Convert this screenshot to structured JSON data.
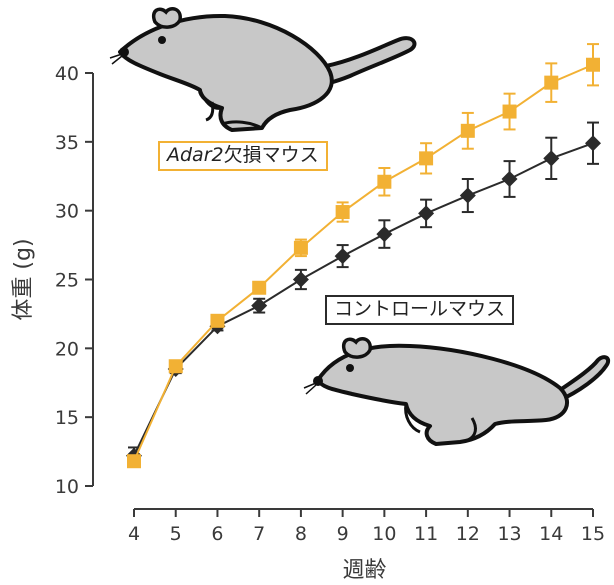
{
  "chart_data": {
    "type": "line",
    "xlabel": "週齢",
    "ylabel": "体重 (g)",
    "x": [
      4,
      5,
      6,
      7,
      8,
      9,
      10,
      11,
      12,
      13,
      14,
      15
    ],
    "xlim": [
      4,
      15
    ],
    "ylim": [
      10,
      40
    ],
    "yticks": [
      10,
      15,
      20,
      25,
      30,
      35,
      40
    ],
    "grid": false,
    "series": [
      {
        "name_italic": "Adar2",
        "name_rest": "欠損マウス",
        "color": "#f2b134",
        "marker": "square",
        "values": [
          11.8,
          18.7,
          22.0,
          24.4,
          27.3,
          29.9,
          32.1,
          33.8,
          35.8,
          37.2,
          39.3,
          40.6
        ],
        "errors": [
          0.4,
          0.4,
          0.3,
          0.4,
          0.6,
          0.7,
          1.0,
          1.1,
          1.3,
          1.3,
          1.4,
          1.5
        ]
      },
      {
        "name": "コントロールマウス",
        "color": "#2b2b2b",
        "marker": "diamond",
        "values": [
          12.2,
          18.5,
          21.6,
          23.1,
          25.0,
          26.7,
          28.3,
          29.8,
          31.1,
          32.3,
          33.8,
          34.9
        ],
        "errors": [
          0.6,
          0.3,
          0.3,
          0.5,
          0.7,
          0.8,
          1.0,
          1.0,
          1.2,
          1.3,
          1.5,
          1.5
        ]
      }
    ]
  },
  "colors": {
    "ko": "#f2b134",
    "control": "#2b2b2b",
    "axis": "#3a3a3a",
    "mouse_body": "#c8c8c8"
  },
  "icons": {
    "top_mouse": "mouse-icon",
    "bottom_mouse": "mouse-icon"
  }
}
